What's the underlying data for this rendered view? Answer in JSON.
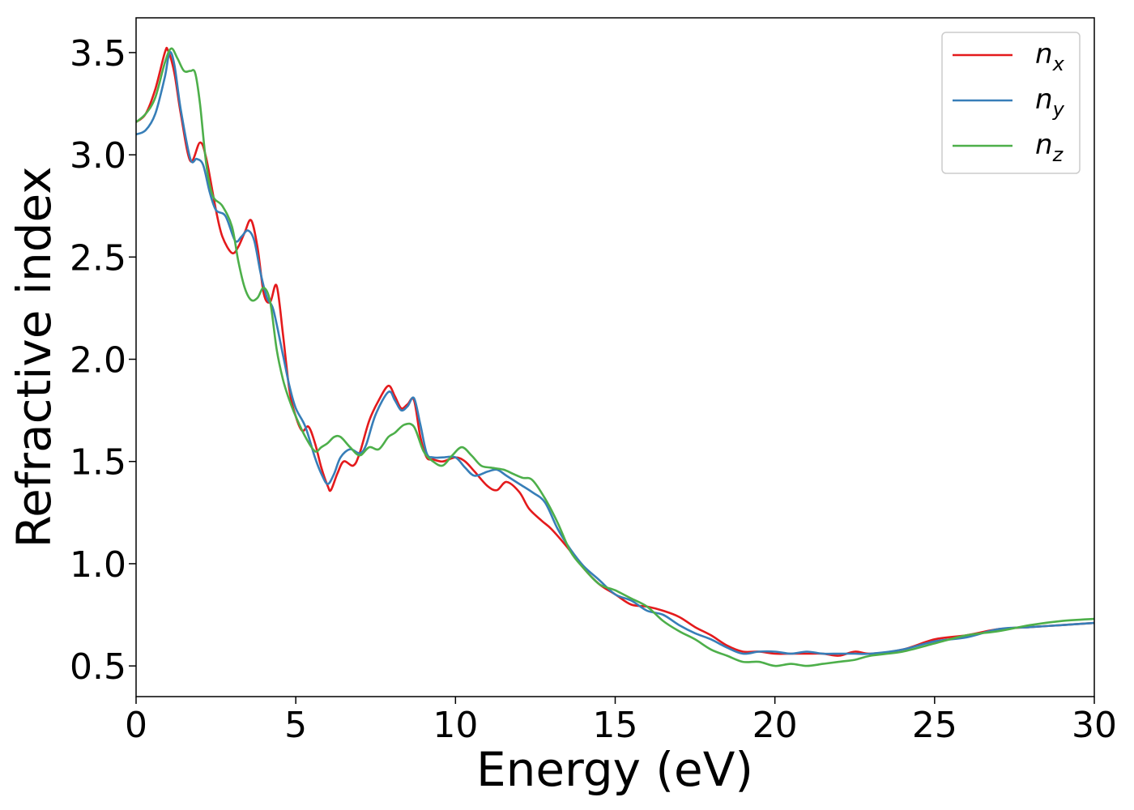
{
  "chart_data": {
    "type": "line",
    "xlabel": "Energy (eV)",
    "ylabel": "Refractive index",
    "xlim": [
      0,
      30
    ],
    "ylim": [
      0.35,
      3.67
    ],
    "xticks": [
      0,
      5,
      10,
      15,
      20,
      25,
      30
    ],
    "xtick_labels": [
      "0",
      "5",
      "10",
      "15",
      "20",
      "25",
      "30"
    ],
    "yticks": [
      0.5,
      1.0,
      1.5,
      2.0,
      2.5,
      3.0,
      3.5
    ],
    "ytick_labels": [
      "0.5",
      "1.0",
      "1.5",
      "2.0",
      "2.5",
      "3.0",
      "3.5"
    ],
    "grid": false,
    "legend_position": "top-right",
    "series": [
      {
        "name": "n_x",
        "legend_base": "n",
        "legend_sub": "x",
        "color": "#e41a1c",
        "x": [
          0,
          0.3,
          0.6,
          0.9,
          1.0,
          1.2,
          1.4,
          1.7,
          2.0,
          2.2,
          2.5,
          2.7,
          3.0,
          3.2,
          3.4,
          3.6,
          3.8,
          4.0,
          4.2,
          4.4,
          4.6,
          4.8,
          5.0,
          5.2,
          5.4,
          5.6,
          5.8,
          6.0,
          6.1,
          6.3,
          6.5,
          6.8,
          7.0,
          7.3,
          7.6,
          7.9,
          8.1,
          8.3,
          8.5,
          8.7,
          8.9,
          9.1,
          9.3,
          9.6,
          10.0,
          10.3,
          10.6,
          11.0,
          11.3,
          11.6,
          12.0,
          12.3,
          12.7,
          13.0,
          13.5,
          14.0,
          14.5,
          15.0,
          15.5,
          16.0,
          16.5,
          17.0,
          17.5,
          18.0,
          18.5,
          19.0,
          19.5,
          20.0,
          20.5,
          21.0,
          21.5,
          22.0,
          22.5,
          23.0,
          24.0,
          25.0,
          26.0,
          27.0,
          28.0,
          29.0,
          30.0
        ],
        "values": [
          3.16,
          3.2,
          3.32,
          3.5,
          3.51,
          3.4,
          3.2,
          2.97,
          3.06,
          2.98,
          2.73,
          2.6,
          2.52,
          2.55,
          2.62,
          2.68,
          2.55,
          2.32,
          2.28,
          2.36,
          2.12,
          1.85,
          1.72,
          1.65,
          1.67,
          1.59,
          1.47,
          1.38,
          1.36,
          1.44,
          1.5,
          1.48,
          1.54,
          1.7,
          1.8,
          1.87,
          1.82,
          1.76,
          1.78,
          1.8,
          1.62,
          1.52,
          1.51,
          1.5,
          1.52,
          1.5,
          1.45,
          1.38,
          1.36,
          1.4,
          1.35,
          1.27,
          1.21,
          1.17,
          1.08,
          0.98,
          0.9,
          0.85,
          0.8,
          0.79,
          0.77,
          0.74,
          0.69,
          0.65,
          0.6,
          0.57,
          0.57,
          0.56,
          0.56,
          0.56,
          0.56,
          0.55,
          0.57,
          0.56,
          0.58,
          0.63,
          0.65,
          0.68,
          0.69,
          0.7,
          0.71
        ]
      },
      {
        "name": "n_y",
        "legend_base": "n",
        "legend_sub": "y",
        "color": "#377eb8",
        "x": [
          0,
          0.3,
          0.6,
          0.9,
          1.05,
          1.2,
          1.4,
          1.7,
          1.9,
          2.1,
          2.3,
          2.5,
          2.8,
          3.1,
          3.3,
          3.5,
          3.7,
          3.9,
          4.1,
          4.3,
          4.6,
          4.8,
          5.0,
          5.3,
          5.6,
          5.8,
          6.0,
          6.2,
          6.4,
          6.7,
          7.0,
          7.2,
          7.5,
          7.9,
          8.1,
          8.3,
          8.5,
          8.7,
          8.9,
          9.1,
          9.3,
          9.6,
          10.0,
          10.3,
          10.6,
          11.0,
          11.3,
          11.6,
          12.0,
          12.4,
          12.8,
          13.2,
          13.6,
          14.0,
          14.5,
          15.0,
          15.5,
          16.0,
          16.5,
          17.0,
          17.5,
          18.0,
          18.5,
          19.0,
          19.5,
          20.0,
          20.5,
          21.0,
          21.5,
          22.0,
          22.5,
          23.0,
          24.0,
          25.0,
          26.0,
          27.0,
          28.0,
          29.0,
          30.0
        ],
        "values": [
          3.1,
          3.12,
          3.2,
          3.38,
          3.5,
          3.44,
          3.22,
          2.98,
          2.98,
          2.95,
          2.82,
          2.73,
          2.7,
          2.58,
          2.6,
          2.63,
          2.58,
          2.42,
          2.3,
          2.24,
          2.02,
          1.87,
          1.76,
          1.67,
          1.52,
          1.44,
          1.39,
          1.44,
          1.52,
          1.56,
          1.54,
          1.58,
          1.73,
          1.84,
          1.8,
          1.75,
          1.77,
          1.81,
          1.68,
          1.54,
          1.52,
          1.52,
          1.52,
          1.47,
          1.43,
          1.45,
          1.46,
          1.43,
          1.39,
          1.35,
          1.3,
          1.17,
          1.07,
          0.99,
          0.92,
          0.85,
          0.82,
          0.77,
          0.75,
          0.7,
          0.66,
          0.63,
          0.59,
          0.56,
          0.57,
          0.57,
          0.56,
          0.57,
          0.56,
          0.56,
          0.56,
          0.56,
          0.58,
          0.62,
          0.64,
          0.68,
          0.69,
          0.7,
          0.71
        ]
      },
      {
        "name": "n_z",
        "legend_base": "n",
        "legend_sub": "z",
        "color": "#4daf4a",
        "x": [
          0,
          0.3,
          0.6,
          0.9,
          1.1,
          1.3,
          1.5,
          1.7,
          1.85,
          2.0,
          2.2,
          2.4,
          2.7,
          3.0,
          3.2,
          3.4,
          3.6,
          3.8,
          4.0,
          4.2,
          4.4,
          4.6,
          4.8,
          5.0,
          5.3,
          5.6,
          5.8,
          6.0,
          6.2,
          6.4,
          6.7,
          7.0,
          7.3,
          7.6,
          7.9,
          8.1,
          8.4,
          8.7,
          9.0,
          9.3,
          9.6,
          9.9,
          10.2,
          10.5,
          10.8,
          11.1,
          11.5,
          11.8,
          12.1,
          12.4,
          12.8,
          13.2,
          13.6,
          14.0,
          14.5,
          15.0,
          15.5,
          16.0,
          16.5,
          17.0,
          17.5,
          18.0,
          18.5,
          19.0,
          19.5,
          20.0,
          20.5,
          21.0,
          21.5,
          22.0,
          22.5,
          23.0,
          24.0,
          25.0,
          26.0,
          27.0,
          28.0,
          29.0,
          30.0
        ],
        "values": [
          3.16,
          3.2,
          3.28,
          3.45,
          3.52,
          3.47,
          3.41,
          3.41,
          3.4,
          3.25,
          2.95,
          2.8,
          2.75,
          2.65,
          2.48,
          2.35,
          2.29,
          2.3,
          2.35,
          2.28,
          2.05,
          1.9,
          1.8,
          1.72,
          1.62,
          1.55,
          1.57,
          1.59,
          1.62,
          1.62,
          1.57,
          1.53,
          1.57,
          1.56,
          1.62,
          1.64,
          1.68,
          1.67,
          1.55,
          1.5,
          1.48,
          1.53,
          1.57,
          1.53,
          1.48,
          1.47,
          1.46,
          1.44,
          1.42,
          1.41,
          1.32,
          1.2,
          1.06,
          0.98,
          0.9,
          0.87,
          0.83,
          0.79,
          0.72,
          0.67,
          0.63,
          0.58,
          0.55,
          0.52,
          0.52,
          0.5,
          0.51,
          0.5,
          0.51,
          0.52,
          0.53,
          0.55,
          0.57,
          0.61,
          0.65,
          0.67,
          0.7,
          0.72,
          0.73
        ]
      }
    ]
  }
}
